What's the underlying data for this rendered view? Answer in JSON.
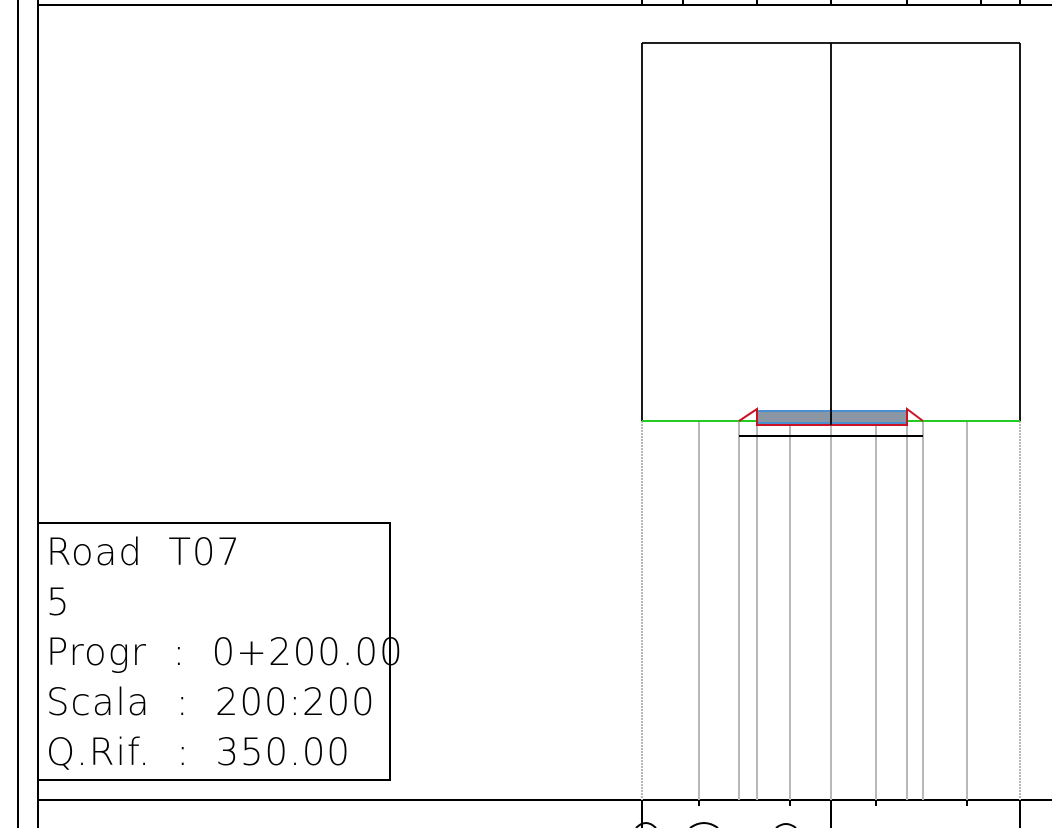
{
  "section_label": {
    "road": "Road  T07",
    "section_number": "5",
    "progressive": "Progr  :  0+200.00",
    "scale": "Scala  :  200:200",
    "reference_elevation": "Q.Rif.  :  350.00"
  },
  "colors": {
    "background": "#ffffff",
    "frame": "#000000",
    "terrain_line": "#22cc22",
    "road_surface": "#4a8fd0",
    "pavement_fill": "#8a96a3",
    "subgrade_outline": "#cc1122",
    "station_lines": "#b8b8b8"
  },
  "icons": [
    "section-info-box",
    "cross-section-grid",
    "terrain-line",
    "road-platform"
  ]
}
